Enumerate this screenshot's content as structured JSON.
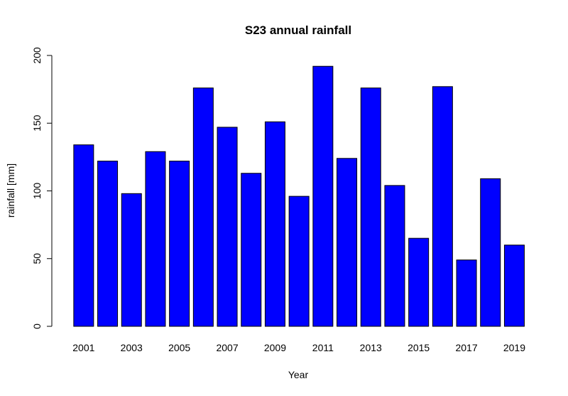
{
  "chart_data": {
    "type": "bar",
    "title": "S23 annual rainfall",
    "xlabel": "Year",
    "ylabel": "rainfall [mm]",
    "categories": [
      "2001",
      "2002",
      "2003",
      "2004",
      "2005",
      "2006",
      "2007",
      "2008",
      "2009",
      "2010",
      "2011",
      "2012",
      "2013",
      "2014",
      "2015",
      "2016",
      "2017",
      "2018",
      "2019"
    ],
    "values": [
      134,
      122,
      98,
      129,
      122,
      176,
      147,
      113,
      151,
      96,
      192,
      124,
      176,
      104,
      65,
      177,
      49,
      109,
      60
    ],
    "x_tick_labels": [
      "2001",
      "2003",
      "2005",
      "2007",
      "2009",
      "2011",
      "2013",
      "2015",
      "2017",
      "2019"
    ],
    "y_ticks": [
      0,
      50,
      100,
      150,
      200
    ],
    "ylim": [
      0,
      200
    ],
    "bar_color": "#0000ff",
    "grid": false,
    "legend": "none"
  }
}
